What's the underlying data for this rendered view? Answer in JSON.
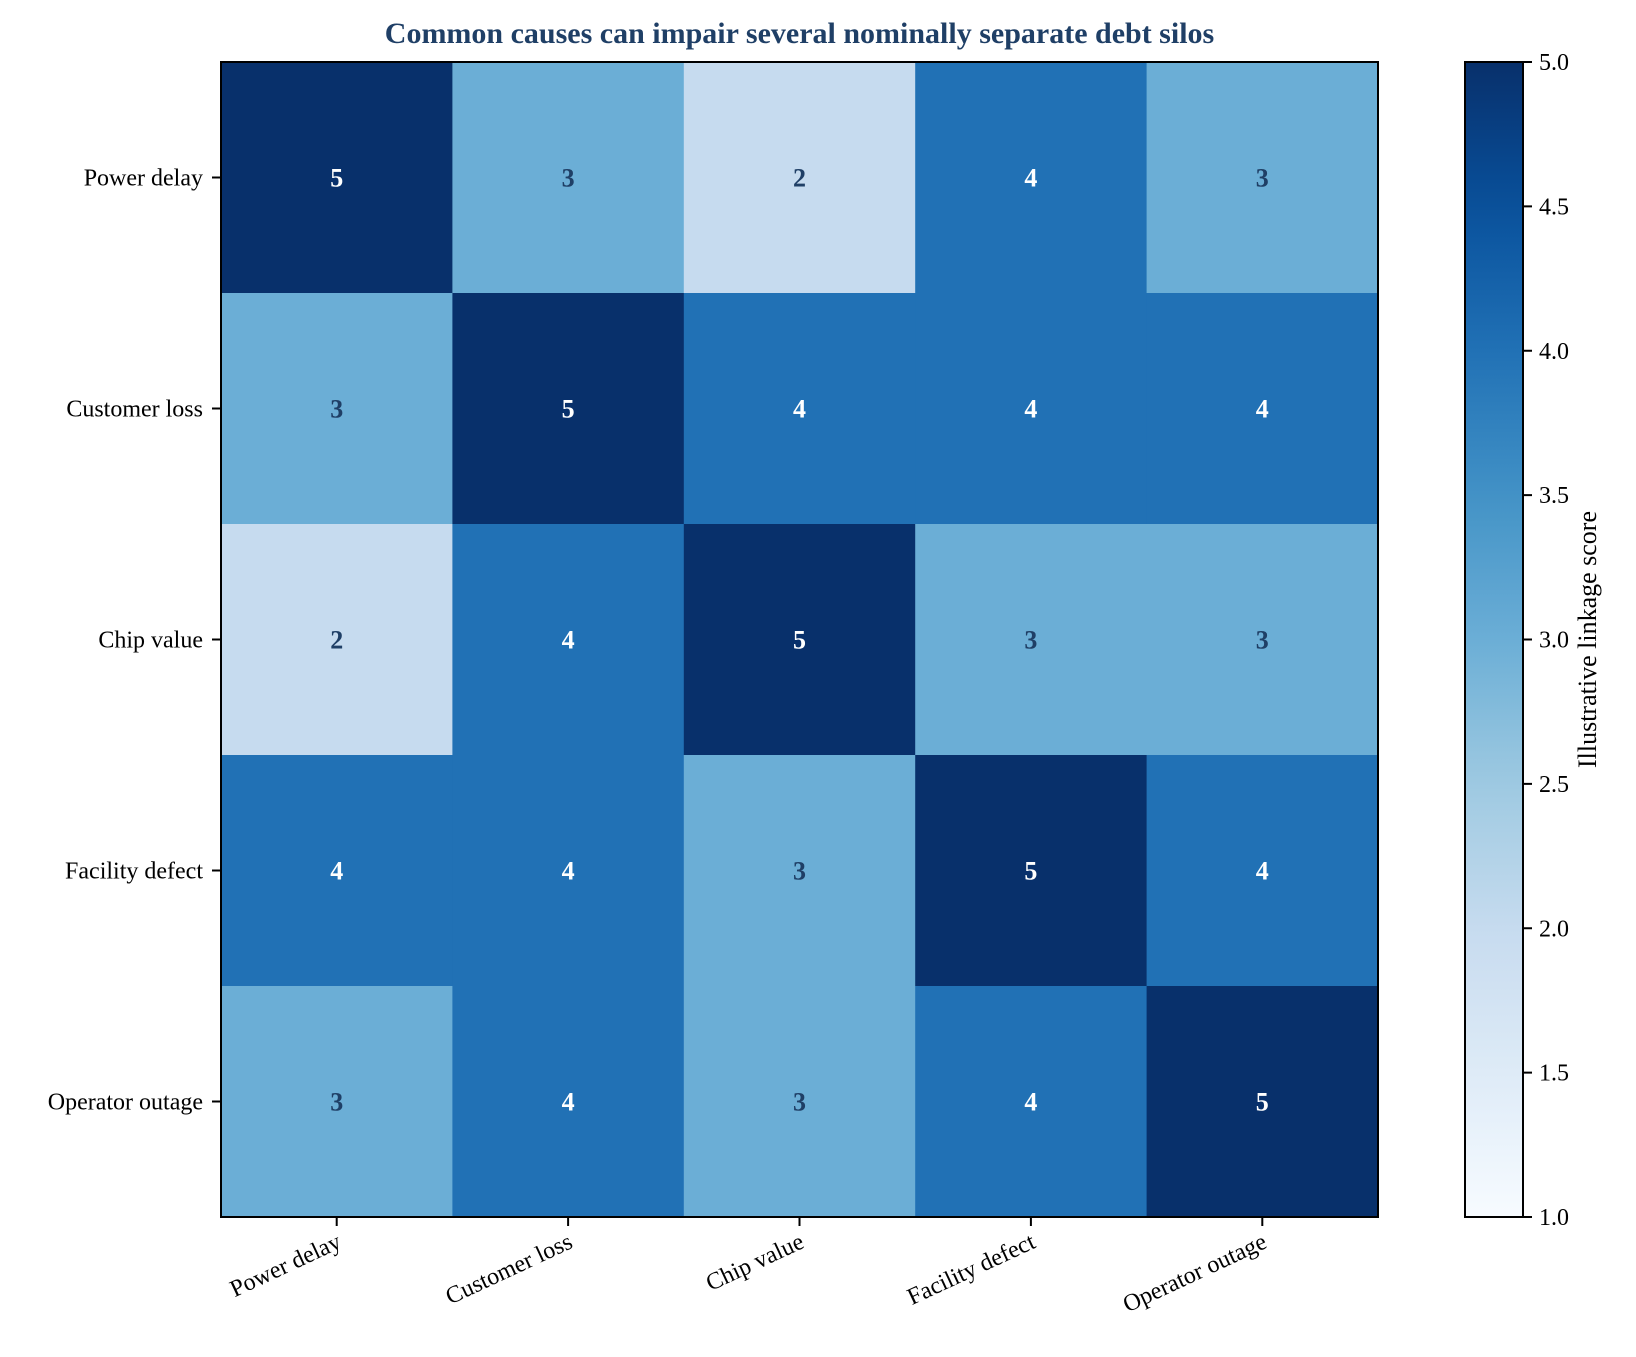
{
  "chart_data": {
    "type": "heatmap",
    "title": "Common causes can impair several nominally separate debt silos",
    "x_categories": [
      "Power delay",
      "Customer loss",
      "Chip value",
      "Facility defect",
      "Operator outage"
    ],
    "y_categories": [
      "Power delay",
      "Customer loss",
      "Chip value",
      "Facility defect",
      "Operator outage"
    ],
    "values": [
      [
        5,
        3,
        2,
        4,
        3
      ],
      [
        3,
        5,
        4,
        4,
        4
      ],
      [
        2,
        4,
        5,
        3,
        3
      ],
      [
        4,
        4,
        3,
        5,
        4
      ],
      [
        3,
        4,
        3,
        4,
        5
      ]
    ],
    "colorbar": {
      "label": "Illustrative linkage score",
      "range": [
        1,
        5
      ],
      "ticks": [
        1.0,
        1.5,
        2.0,
        2.5,
        3.0,
        3.5,
        4.0,
        4.5,
        5.0
      ],
      "tick_labels": [
        "1.0",
        "1.5",
        "2.0",
        "2.5",
        "3.0",
        "3.5",
        "4.0",
        "4.5",
        "5.0"
      ],
      "colormap": "Blues"
    },
    "colors": {
      "title": "#1f3f66",
      "dark_text": "#1f3f66",
      "light_text": "#ffffff"
    }
  }
}
